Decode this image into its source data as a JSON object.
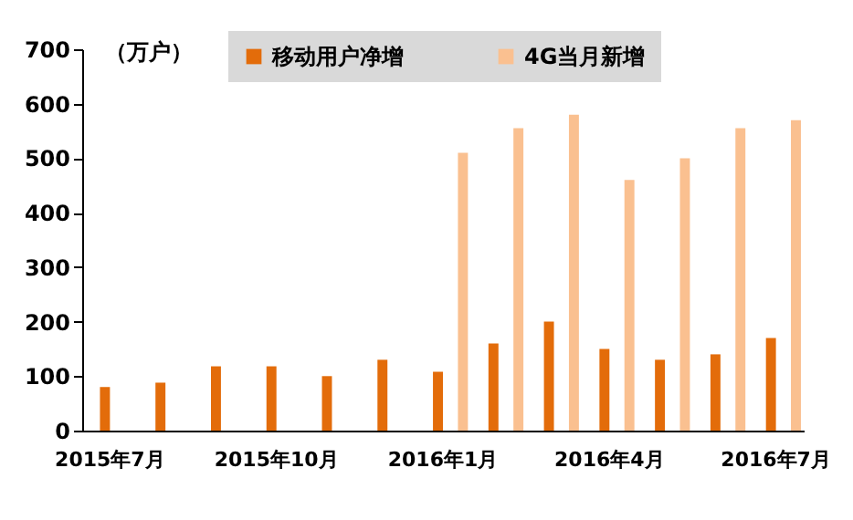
{
  "chart_data": {
    "type": "bar",
    "ylabel": "（万户）",
    "categories": [
      "2015年7月",
      null,
      null,
      "2015年10月",
      null,
      null,
      "2016年1月",
      null,
      null,
      "2016年4月",
      null,
      null,
      "2016年7月"
    ],
    "series": [
      {
        "name": "移动用户净增",
        "color": "#e36c0a",
        "values": [
          80,
          88,
          118,
          118,
          100,
          130,
          108,
          160,
          200,
          150,
          130,
          140,
          170
        ]
      },
      {
        "name": "4G当月新增",
        "color": "#fac090",
        "values": [
          null,
          null,
          null,
          null,
          null,
          null,
          510,
          555,
          580,
          460,
          500,
          555,
          570
        ]
      }
    ],
    "ylim": [
      0,
      700
    ],
    "yticks": [
      0,
      100,
      200,
      300,
      400,
      500,
      600,
      700
    ],
    "grid": false,
    "legend": "top"
  }
}
